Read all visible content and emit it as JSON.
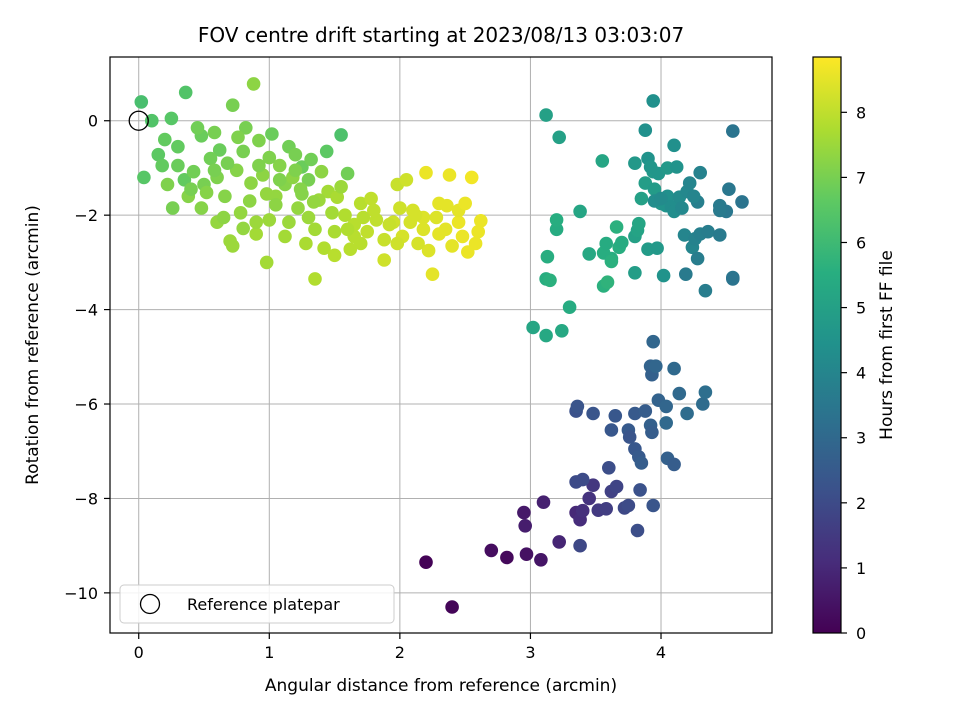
{
  "chart_data": {
    "type": "scatter",
    "title": "FOV centre drift starting at 2023/08/13 03:03:07",
    "xlabel": "Angular distance from reference (arcmin)",
    "ylabel": "Rotation from reference (arcmin)",
    "xlim": [
      -0.22,
      4.85
    ],
    "ylim": [
      -10.85,
      1.35
    ],
    "xticks": [
      0,
      1,
      2,
      3,
      4
    ],
    "yticks": [
      0,
      -2,
      -4,
      -6,
      -8,
      -10
    ],
    "xtick_labels": [
      "0",
      "1",
      "2",
      "3",
      "4"
    ],
    "ytick_labels": [
      "0",
      "−2",
      "−4",
      "−6",
      "−8",
      "−10"
    ],
    "grid": true,
    "colorbar": {
      "label": "Hours from first FF file",
      "colormap": "viridis",
      "range": [
        0,
        8.85
      ],
      "ticks": [
        0,
        1,
        2,
        3,
        4,
        5,
        6,
        7,
        8
      ],
      "tick_labels": [
        "0",
        "1",
        "2",
        "3",
        "4",
        "5",
        "6",
        "7",
        "8"
      ]
    },
    "legend": {
      "position": "lower-left",
      "entries": [
        {
          "label": "Reference platepar",
          "marker": "open-circle"
        }
      ]
    },
    "reference_point": {
      "x": 0,
      "y": 0
    },
    "points": [
      [
        2.2,
        -9.35,
        0.05
      ],
      [
        2.4,
        -10.3,
        0.1
      ],
      [
        2.82,
        -9.25,
        0.2
      ],
      [
        2.7,
        -9.1,
        0.3
      ],
      [
        2.97,
        -9.18,
        0.4
      ],
      [
        3.08,
        -9.3,
        0.5
      ],
      [
        2.95,
        -8.3,
        0.6
      ],
      [
        2.96,
        -8.58,
        0.7
      ],
      [
        3.1,
        -8.08,
        0.8
      ],
      [
        3.22,
        -8.92,
        0.9
      ],
      [
        3.35,
        -8.3,
        1.0
      ],
      [
        3.38,
        -8.45,
        1.1
      ],
      [
        3.4,
        -8.26,
        1.2
      ],
      [
        3.45,
        -8.0,
        1.3
      ],
      [
        3.48,
        -7.72,
        1.4
      ],
      [
        3.52,
        -8.25,
        1.5
      ],
      [
        3.58,
        -8.22,
        1.6
      ],
      [
        3.62,
        -7.85,
        1.7
      ],
      [
        3.66,
        -7.75,
        1.8
      ],
      [
        3.72,
        -8.2,
        1.9
      ],
      [
        3.75,
        -8.15,
        2.0
      ],
      [
        3.82,
        -8.68,
        2.1
      ],
      [
        3.84,
        -7.82,
        2.2
      ],
      [
        3.94,
        -8.15,
        2.3
      ],
      [
        3.4,
        -7.6,
        2.0
      ],
      [
        3.38,
        -9.0,
        1.9
      ],
      [
        3.6,
        -7.35,
        2.1
      ],
      [
        3.35,
        -6.15,
        2.2
      ],
      [
        3.48,
        -6.2,
        2.3
      ],
      [
        3.62,
        -6.55,
        2.4
      ],
      [
        3.75,
        -6.55,
        2.5
      ],
      [
        3.76,
        -6.7,
        2.3
      ],
      [
        3.8,
        -6.95,
        2.4
      ],
      [
        3.83,
        -7.12,
        2.5
      ],
      [
        3.85,
        -7.25,
        2.6
      ],
      [
        3.92,
        -6.45,
        2.7
      ],
      [
        3.93,
        -6.6,
        2.6
      ],
      [
        3.98,
        -5.92,
        2.8
      ],
      [
        4.04,
        -6.05,
        2.9
      ],
      [
        4.04,
        -6.4,
        3.0
      ],
      [
        4.05,
        -7.15,
        2.7
      ],
      [
        4.1,
        -7.28,
        2.6
      ],
      [
        4.14,
        -5.78,
        3.0
      ],
      [
        4.2,
        -6.2,
        3.1
      ],
      [
        4.32,
        -6.0,
        3.1
      ],
      [
        4.34,
        -5.75,
        3.2
      ],
      [
        3.8,
        -6.2,
        2.5
      ],
      [
        3.88,
        -6.15,
        2.6
      ],
      [
        3.92,
        -5.2,
        2.8
      ],
      [
        3.94,
        -4.68,
        2.9
      ],
      [
        3.93,
        -5.38,
        2.7
      ],
      [
        3.96,
        -5.2,
        2.9
      ],
      [
        4.1,
        -5.25,
        3.0
      ],
      [
        3.36,
        -6.05,
        2.3
      ],
      [
        3.65,
        -6.25,
        2.4
      ],
      [
        3.35,
        -7.65,
        2.0
      ],
      [
        3.02,
        -4.38,
        5.2
      ],
      [
        3.12,
        -4.55,
        5.3
      ],
      [
        3.24,
        -4.45,
        5.3
      ],
      [
        3.3,
        -3.95,
        5.4
      ],
      [
        3.12,
        -3.35,
        5.5
      ],
      [
        3.15,
        -3.38,
        5.6
      ],
      [
        3.13,
        -2.88,
        5.5
      ],
      [
        3.2,
        -2.3,
        5.4
      ],
      [
        3.2,
        -2.1,
        5.5
      ],
      [
        3.38,
        -1.92,
        5.2
      ],
      [
        3.45,
        -2.82,
        5.3
      ],
      [
        3.56,
        -3.5,
        5.6
      ],
      [
        3.59,
        -3.42,
        5.7
      ],
      [
        3.56,
        -2.8,
        5.5
      ],
      [
        3.58,
        -2.6,
        5.4
      ],
      [
        3.62,
        -2.92,
        5.5
      ],
      [
        3.62,
        -2.98,
        5.6
      ],
      [
        3.68,
        -2.68,
        5.5
      ],
      [
        3.66,
        -2.25,
        5.6
      ],
      [
        3.7,
        -2.58,
        5.4
      ],
      [
        3.8,
        -3.22,
        4.9
      ],
      [
        3.8,
        -2.45,
        5.0
      ],
      [
        3.82,
        -2.32,
        5.1
      ],
      [
        3.83,
        -2.18,
        5.2
      ],
      [
        3.85,
        -1.65,
        5.0
      ],
      [
        3.88,
        -1.32,
        4.9
      ],
      [
        3.9,
        -2.72,
        4.8
      ],
      [
        3.94,
        -1.08,
        4.7
      ],
      [
        3.95,
        -1.45,
        4.8
      ],
      [
        3.97,
        -2.7,
        4.7
      ],
      [
        3.98,
        -1.12,
        4.6
      ],
      [
        4.0,
        -1.75,
        4.6
      ],
      [
        4.02,
        -3.28,
        4.5
      ],
      [
        4.04,
        -1.8,
        4.5
      ],
      [
        4.05,
        -1.6,
        4.4
      ],
      [
        4.08,
        -1.82,
        4.3
      ],
      [
        4.1,
        -1.92,
        4.3
      ],
      [
        4.1,
        -0.52,
        4.4
      ],
      [
        4.14,
        -1.62,
        4.2
      ],
      [
        4.16,
        -1.85,
        4.1
      ],
      [
        4.18,
        -2.42,
        4.0
      ],
      [
        4.2,
        -1.5,
        4.1
      ],
      [
        4.22,
        -1.32,
        4.0
      ],
      [
        4.24,
        -2.68,
        4.0
      ],
      [
        4.26,
        -2.5,
        3.9
      ],
      [
        4.28,
        -1.72,
        3.8
      ],
      [
        4.3,
        -2.4,
        3.8
      ],
      [
        4.34,
        -3.6,
        3.7
      ],
      [
        4.36,
        -2.35,
        3.7
      ],
      [
        4.45,
        -2.42,
        3.6
      ],
      [
        4.45,
        -1.8,
        3.6
      ],
      [
        4.5,
        -1.92,
        3.5
      ],
      [
        4.52,
        -1.45,
        3.5
      ],
      [
        4.55,
        -3.32,
        3.5
      ],
      [
        4.55,
        -0.22,
        3.4
      ],
      [
        4.62,
        -1.72,
        3.4
      ],
      [
        4.19,
        -3.25,
        3.6
      ],
      [
        4.28,
        -2.92,
        3.7
      ],
      [
        3.9,
        -0.8,
        4.5
      ],
      [
        3.94,
        0.42,
        4.4
      ],
      [
        3.88,
        -0.2,
        4.4
      ],
      [
        3.12,
        0.12,
        5.0
      ],
      [
        3.22,
        -0.35,
        5.0
      ],
      [
        3.55,
        -0.85,
        5.2
      ],
      [
        3.8,
        -0.9,
        4.7
      ],
      [
        3.92,
        -0.98,
        4.6
      ],
      [
        4.05,
        -1.0,
        4.7
      ],
      [
        4.12,
        -0.98,
        4.5
      ],
      [
        3.95,
        -1.7,
        4.3
      ],
      [
        4.0,
        -1.65,
        4.2
      ],
      [
        4.25,
        -1.6,
        4.0
      ],
      [
        4.3,
        -1.1,
        3.9
      ],
      [
        4.45,
        -1.9,
        3.6
      ],
      [
        4.55,
        -3.35,
        3.4
      ],
      [
        0.02,
        0.4,
        6.2
      ],
      [
        0.1,
        0.0,
        6.4
      ],
      [
        0.04,
        -1.2,
        6.5
      ],
      [
        0.15,
        -0.72,
        6.6
      ],
      [
        0.25,
        0.05,
        6.5
      ],
      [
        0.36,
        0.6,
        6.4
      ],
      [
        0.3,
        -0.55,
        6.7
      ],
      [
        0.35,
        -1.25,
        6.7
      ],
      [
        0.48,
        -0.32,
        6.8
      ],
      [
        0.62,
        -0.62,
        6.8
      ],
      [
        0.72,
        0.33,
        7.0
      ],
      [
        0.88,
        0.78,
        7.3
      ],
      [
        0.82,
        -0.15,
        7.0
      ],
      [
        1.02,
        -0.28,
        6.8
      ],
      [
        1.15,
        -0.55,
        6.9
      ],
      [
        1.25,
        -0.98,
        6.8
      ],
      [
        1.3,
        -1.25,
        7.0
      ],
      [
        1.44,
        -0.65,
        6.6
      ],
      [
        1.55,
        -0.3,
        6.3
      ],
      [
        1.6,
        -1.12,
        6.9
      ],
      [
        0.22,
        -1.35,
        7.1
      ],
      [
        0.38,
        -1.6,
        7.2
      ],
      [
        0.48,
        -1.85,
        7.2
      ],
      [
        0.6,
        -2.15,
        7.4
      ],
      [
        0.7,
        -2.55,
        7.5
      ],
      [
        0.8,
        -2.28,
        7.4
      ],
      [
        0.9,
        -2.4,
        7.6
      ],
      [
        1.0,
        -2.1,
        7.5
      ],
      [
        1.05,
        -1.6,
        7.4
      ],
      [
        1.12,
        -1.35,
        7.2
      ],
      [
        1.18,
        -1.2,
        7.3
      ],
      [
        1.22,
        -1.85,
        7.4
      ],
      [
        1.3,
        -2.05,
        7.5
      ],
      [
        1.35,
        -2.3,
        7.6
      ],
      [
        1.42,
        -2.7,
        7.8
      ],
      [
        1.5,
        -2.85,
        7.9
      ],
      [
        1.62,
        -2.72,
        7.9
      ],
      [
        1.65,
        -2.2,
        7.9
      ],
      [
        1.75,
        -2.35,
        8.0
      ],
      [
        1.82,
        -2.1,
        8.0
      ],
      [
        1.88,
        -2.95,
        8.2
      ],
      [
        1.95,
        -2.15,
        8.2
      ],
      [
        2.02,
        -2.45,
        8.3
      ],
      [
        2.1,
        -1.9,
        8.3
      ],
      [
        2.18,
        -2.05,
        8.4
      ],
      [
        2.22,
        -2.75,
        8.4
      ],
      [
        2.25,
        -3.25,
        8.5
      ],
      [
        2.3,
        -2.4,
        8.5
      ],
      [
        2.36,
        -1.8,
        8.5
      ],
      [
        2.4,
        -2.65,
        8.5
      ],
      [
        2.45,
        -2.15,
        8.6
      ],
      [
        2.52,
        -2.78,
        8.6
      ],
      [
        2.58,
        -2.6,
        8.6
      ],
      [
        2.62,
        -2.12,
        8.6
      ],
      [
        2.2,
        -1.1,
        8.6
      ],
      [
        2.38,
        -1.15,
        8.6
      ],
      [
        2.55,
        -1.2,
        8.7
      ],
      [
        1.98,
        -1.35,
        8.1
      ],
      [
        2.05,
        -1.25,
        8.2
      ],
      [
        1.58,
        -2.0,
        7.8
      ],
      [
        1.7,
        -1.75,
        7.9
      ],
      [
        1.78,
        -1.65,
        8.0
      ],
      [
        1.45,
        -1.5,
        7.6
      ],
      [
        1.52,
        -1.62,
        7.7
      ],
      [
        0.95,
        -1.15,
        7.3
      ],
      [
        0.75,
        -1.05,
        7.2
      ],
      [
        0.6,
        -1.2,
        7.1
      ],
      [
        0.5,
        -1.35,
        7.0
      ],
      [
        0.42,
        -1.08,
        6.9
      ],
      [
        0.3,
        -0.95,
        6.8
      ],
      [
        0.55,
        -0.8,
        6.9
      ],
      [
        0.68,
        -0.9,
        7.0
      ],
      [
        0.92,
        -0.95,
        7.1
      ],
      [
        1.08,
        -0.95,
        7.2
      ],
      [
        1.2,
        -1.05,
        7.1
      ],
      [
        0.98,
        -1.55,
        7.4
      ],
      [
        0.85,
        -1.7,
        7.3
      ],
      [
        0.78,
        -1.95,
        7.4
      ],
      [
        1.38,
        -1.68,
        7.5
      ],
      [
        1.48,
        -1.95,
        7.6
      ],
      [
        1.65,
        -2.45,
        7.9
      ],
      [
        1.88,
        -2.52,
        8.1
      ],
      [
        2.08,
        -2.15,
        8.3
      ],
      [
        2.28,
        -2.05,
        8.4
      ],
      [
        2.45,
        -1.9,
        8.5
      ],
      [
        2.5,
        -1.75,
        8.6
      ],
      [
        2.6,
        -2.35,
        8.6
      ],
      [
        1.35,
        -3.35,
        7.8
      ],
      [
        0.98,
        -3.0,
        7.6
      ],
      [
        0.72,
        -2.65,
        7.5
      ],
      [
        0.65,
        -2.05,
        7.3
      ],
      [
        1.12,
        -2.45,
        7.6
      ],
      [
        1.28,
        -2.6,
        7.7
      ],
      [
        1.2,
        -0.72,
        7.0
      ],
      [
        1.32,
        -0.82,
        6.9
      ],
      [
        0.45,
        -0.15,
        6.9
      ],
      [
        0.58,
        -0.25,
        7.0
      ],
      [
        0.76,
        -0.35,
        7.1
      ],
      [
        0.92,
        -0.42,
        7.1
      ],
      [
        0.18,
        -0.95,
        6.7
      ],
      [
        0.26,
        -1.85,
        7.0
      ],
      [
        0.52,
        -1.52,
        7.2
      ],
      [
        0.86,
        -1.32,
        7.3
      ],
      [
        1.4,
        -1.08,
        7.3
      ],
      [
        1.55,
        -1.4,
        7.5
      ],
      [
        1.8,
        -1.9,
        8.0
      ],
      [
        1.92,
        -2.2,
        8.1
      ],
      [
        2.14,
        -2.6,
        8.3
      ],
      [
        2.35,
        -2.3,
        8.5
      ],
      [
        2.48,
        -2.45,
        8.6
      ],
      [
        0.4,
        -1.45,
        7.0
      ],
      [
        0.66,
        -1.6,
        7.2
      ],
      [
        1.05,
        -1.78,
        7.3
      ],
      [
        1.25,
        -1.55,
        7.2
      ],
      [
        1.6,
        -2.3,
        7.8
      ],
      [
        1.72,
        -2.05,
        7.9
      ],
      [
        1.98,
        -2.6,
        8.2
      ],
      [
        2.18,
        -2.3,
        8.4
      ],
      [
        2.3,
        -1.75,
        8.5
      ],
      [
        0.9,
        -2.15,
        7.5
      ],
      [
        1.15,
        -2.15,
        7.5
      ],
      [
        0.58,
        -1.05,
        7.0
      ],
      [
        0.8,
        -0.65,
        7.0
      ],
      [
        1.0,
        -0.78,
        7.1
      ],
      [
        0.2,
        -0.4,
        6.7
      ],
      [
        1.08,
        -1.25,
        7.1
      ],
      [
        1.24,
        -1.45,
        7.2
      ],
      [
        1.34,
        -1.72,
        7.4
      ],
      [
        1.5,
        -2.35,
        7.7
      ],
      [
        1.7,
        -2.6,
        7.9
      ],
      [
        2.0,
        -1.85,
        8.2
      ],
      [
        2.12,
        -2.0,
        8.3
      ]
    ]
  }
}
